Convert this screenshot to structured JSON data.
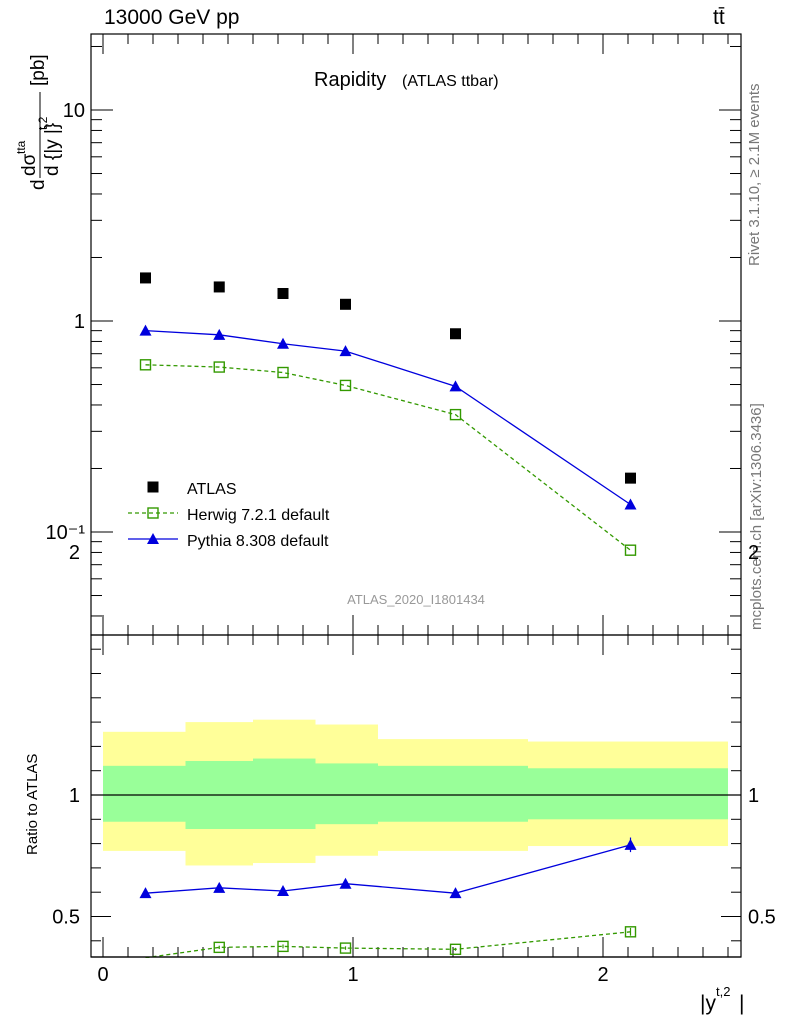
{
  "header": {
    "energy_label": "13000 GeV pp",
    "process_label": "tt̄"
  },
  "side_labels": {
    "rivet": "Rivet 3.1.10, ≥ 2.1M events",
    "mcplots": "mcplots.cern.ch [arXiv:1306.3436]"
  },
  "chart_data": [
    {
      "type": "scatter",
      "title": "Rapidity",
      "subtitle": "(ATLAS ttbar)",
      "watermark": "ATLAS_2020_I1801434",
      "ylabel": "d dσ^{tta} / d {|y^{t,2}|} [pb]",
      "yscale": "log",
      "ylim": [
        0.035,
        22
      ],
      "xlim": [
        -0.05,
        2.55
      ],
      "ytick_labels": [
        "10",
        "1",
        "10⁻¹"
      ],
      "legend_position": "bottom-left",
      "x": [
        0.17,
        0.465,
        0.72,
        0.97,
        1.41,
        2.11
      ],
      "series": [
        {
          "name": "ATLAS",
          "marker": "filled-square",
          "color": "#000000",
          "values": [
            1.6,
            1.45,
            1.35,
            1.2,
            0.87,
            0.18
          ]
        },
        {
          "name": "Herwig 7.2.1 default",
          "marker": "open-square",
          "line": "dashed",
          "color": "#339900",
          "values": [
            0.62,
            0.605,
            0.57,
            0.495,
            0.36,
            0.082
          ]
        },
        {
          "name": "Pythia 8.308 default",
          "marker": "filled-triangle",
          "line": "solid",
          "color": "#0000dd",
          "values": [
            0.9,
            0.86,
            0.78,
            0.72,
            0.49,
            0.135
          ]
        }
      ]
    },
    {
      "type": "scatter",
      "ylabel": "Ratio to ATLAS",
      "xlabel": "|y^{t,2}|",
      "ylim": [
        0.34,
        2.3
      ],
      "xlim": [
        -0.05,
        2.55
      ],
      "ytick_labels": [
        "0.5",
        "1",
        "2"
      ],
      "xtick_labels": [
        "0",
        "1",
        "2"
      ],
      "bins": [
        {
          "lo": 0.0,
          "hi": 0.33,
          "green": [
            0.89,
            1.12
          ],
          "yellow": [
            0.77,
            1.26
          ]
        },
        {
          "lo": 0.33,
          "hi": 0.6,
          "green": [
            0.86,
            1.14
          ],
          "yellow": [
            0.71,
            1.3
          ]
        },
        {
          "lo": 0.6,
          "hi": 0.85,
          "green": [
            0.86,
            1.15
          ],
          "yellow": [
            0.72,
            1.31
          ]
        },
        {
          "lo": 0.85,
          "hi": 1.1,
          "green": [
            0.88,
            1.13
          ],
          "yellow": [
            0.75,
            1.29
          ]
        },
        {
          "lo": 1.1,
          "hi": 1.7,
          "green": [
            0.89,
            1.12
          ],
          "yellow": [
            0.77,
            1.23
          ]
        },
        {
          "lo": 1.7,
          "hi": 2.5,
          "green": [
            0.9,
            1.11
          ],
          "yellow": [
            0.79,
            1.22
          ]
        }
      ],
      "x": [
        0.17,
        0.465,
        0.72,
        0.97,
        1.41,
        2.11
      ],
      "series": [
        {
          "name": "Herwig 7.2.1 default",
          "color": "#339900",
          "values": [
            0.33,
            0.373,
            0.377,
            0.37,
            0.365,
            0.437
          ],
          "errors": [
            0.005,
            0.007,
            0.008,
            0.007,
            0.006,
            0.016
          ]
        },
        {
          "name": "Pythia 8.308 default",
          "color": "#0000dd",
          "values": [
            0.596,
            0.618,
            0.605,
            0.635,
            0.596,
            0.795
          ],
          "errors": [
            0.014,
            0.016,
            0.016,
            0.017,
            0.012,
            0.03
          ]
        }
      ]
    }
  ]
}
